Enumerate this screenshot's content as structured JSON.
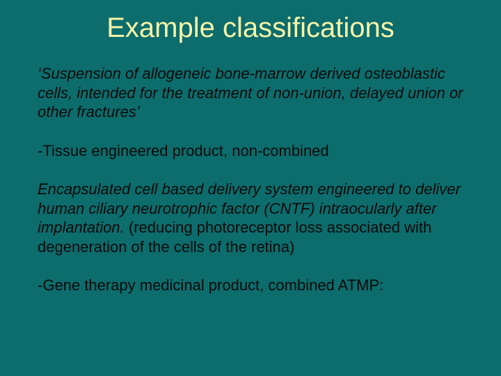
{
  "slide": {
    "background_color": "#0d6c6c",
    "title_color": "#f5f5a8",
    "body_color": "#0a0a0a",
    "title_fontsize": 40,
    "body_fontsize": 22,
    "title": "Example classifications",
    "para1_italic": "‘Suspension of allogeneic bone-marrow derived osteoblastic cells, intended for the treatment of non-union, delayed union or other fractures’",
    "para2": "-Tissue engineered product, non-combined",
    "para3_italic": "Encapsulated  cell based delivery system engineered to deliver human ciliary neurotrophic factor (CNTF) intraocularly after implantation.",
    "para3_tail": " (reducing  photoreceptor loss associated with degeneration of the cells of the retina)",
    "para4": "-Gene therapy medicinal product, combined ATMP:"
  }
}
